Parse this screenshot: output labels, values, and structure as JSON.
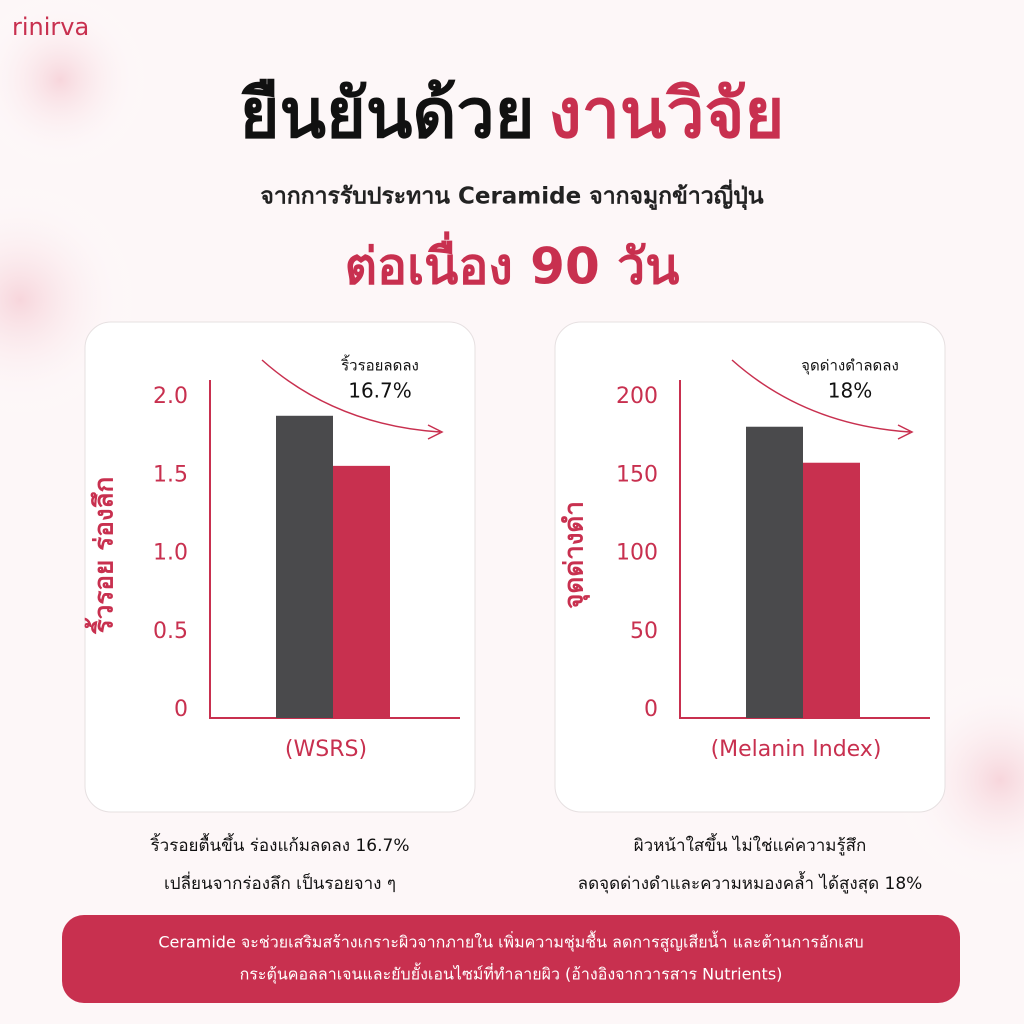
{
  "brand": "rinirva",
  "header": {
    "title_black": "ยืนยันด้วย",
    "title_red": "งานวิจัย",
    "subtitle": "จากการรับประทาน Ceramide จากจมูกข้าวญี่ปุ่น",
    "duration": "ต่อเนื่อง 90 วัน"
  },
  "chart_data": [
    {
      "type": "bar",
      "values": [
        1.88,
        1.56
      ],
      "colors": [
        "#4a4a4c",
        "#c8304f"
      ],
      "ylabel": "ริ้วรอย ร่องลึก",
      "xlabel": "(WSRS)",
      "annotation": "ริ้วรอยลดลง",
      "annotation_value": "16.7%",
      "ylim": [
        0,
        2
      ],
      "yticks": [
        0,
        {
          "value": 0.5,
          "label": "0.5"
        },
        {
          "value": 1,
          "label": "1.0"
        },
        {
          "value": 1.5,
          "label": "1.5"
        },
        {
          "value": 2,
          "label": "2.0"
        }
      ],
      "grid": false,
      "caption": [
        "ริ้วรอยตื้นขึ้น ร่องแก้มลดลง 16.7%",
        "เปลี่ยนจากร่องลึก เป็นรอยจาง ๆ"
      ]
    },
    {
      "type": "bar",
      "values": [
        181,
        158
      ],
      "colors": [
        "#4a4a4c",
        "#c8304f"
      ],
      "ylabel": "จุดด่างดำ",
      "xlabel": "(Melanin Index)",
      "annotation": "จุดด่างดำลดลง",
      "annotation_value": "18%",
      "ylim": [
        0,
        200
      ],
      "yticks": [
        0,
        50,
        100,
        150,
        200
      ],
      "grid": false,
      "caption": [
        "ผิวหน้าใสขึ้น ไม่ใช่แค่ความรู้สึก",
        "ลดจุดด่างดำและความหมองคล้ำ ได้สูงสุด 18%"
      ]
    }
  ],
  "footer": [
    "Ceramide จะช่วยเสริมสร้างเกราะผิวจากภายใน เพิ่มความชุ่มชื้น ลดการสูญเสียน้ำ และต้านการอักเสบ",
    "กระตุ้นคอลลาเจนและยับยั้งเอนไซม์ที่ทำลายผิว (อ้างอิงจากวารสาร Nutrients)"
  ]
}
